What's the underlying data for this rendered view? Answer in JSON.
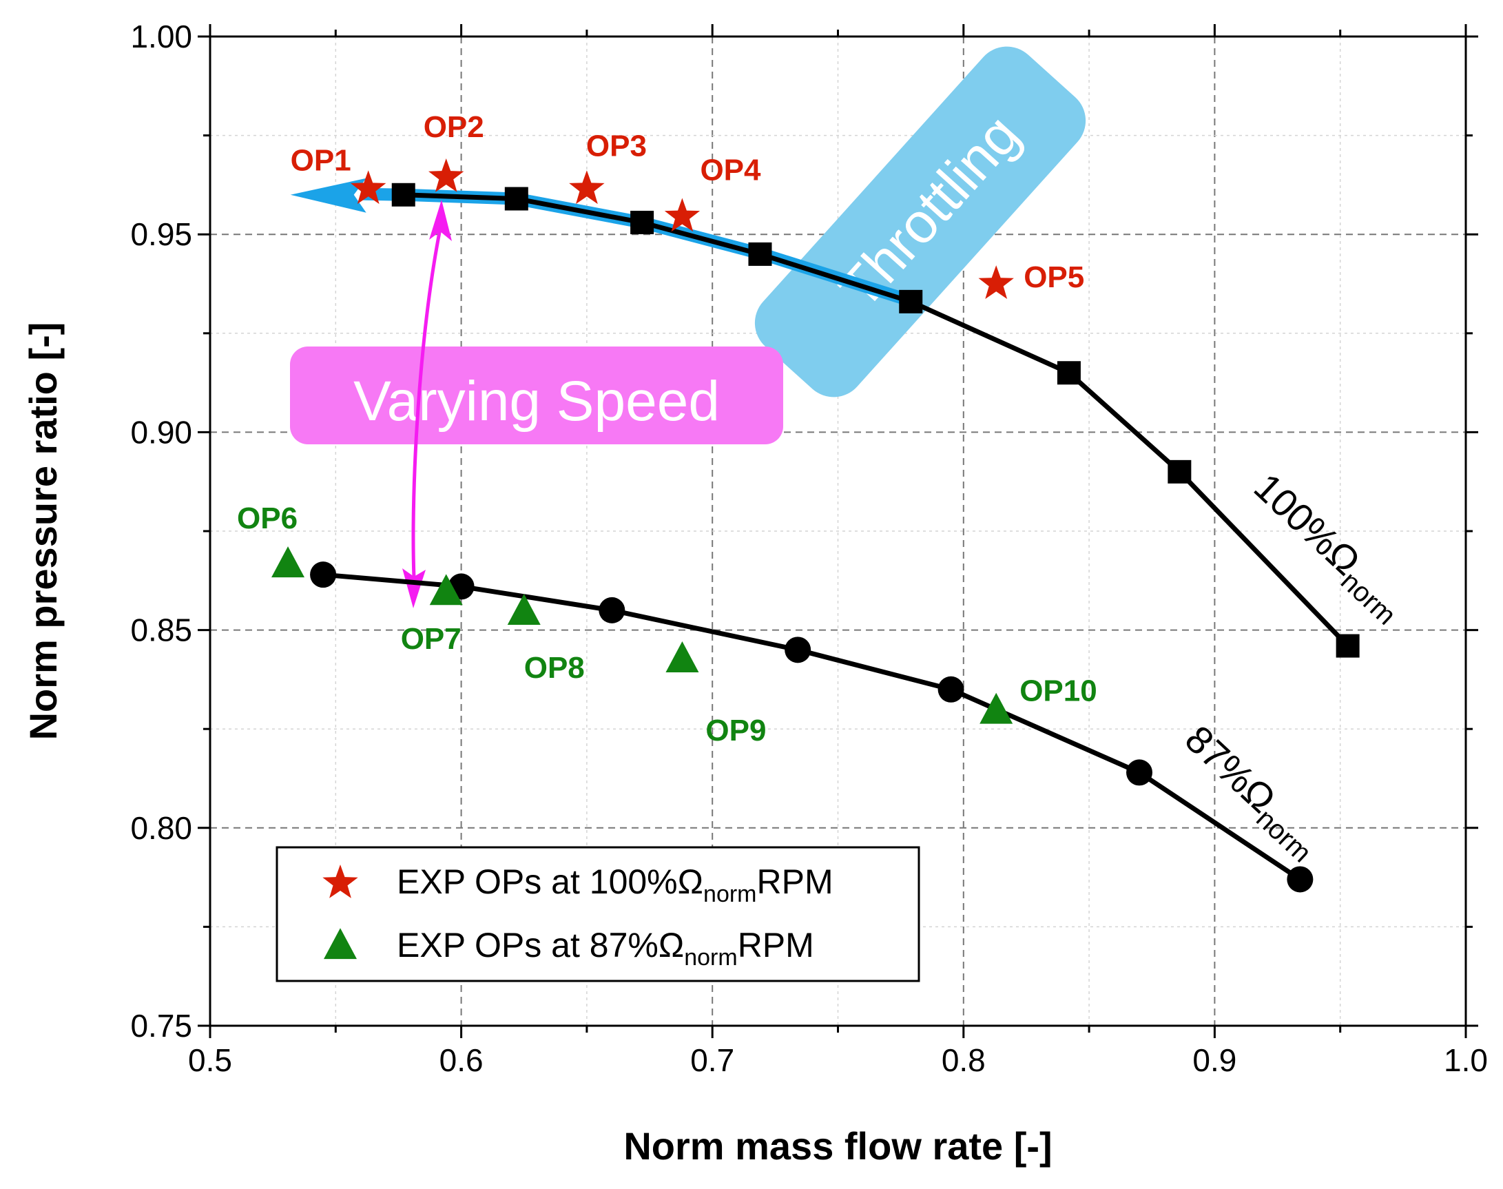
{
  "chart_data": {
    "type": "line",
    "xlabel": "Norm mass flow rate [-]",
    "ylabel": "Norm pressure ratio [-]",
    "xlim": [
      0.5,
      1.0
    ],
    "ylim": [
      0.75,
      1.0
    ],
    "x_ticks": [
      "0.5",
      "0.6",
      "0.7",
      "0.8",
      "0.9",
      "1.0"
    ],
    "y_ticks": [
      "0.75",
      "0.80",
      "0.85",
      "0.90",
      "0.95",
      "1.00"
    ],
    "grid": true,
    "series": [
      {
        "name": "100% speed line",
        "marker": "square",
        "color": "#000000",
        "x": [
          0.577,
          0.622,
          0.672,
          0.719,
          0.779,
          0.842,
          0.886,
          0.953
        ],
        "y": [
          0.96,
          0.959,
          0.953,
          0.945,
          0.933,
          0.915,
          0.89,
          0.846
        ]
      },
      {
        "name": "87% speed line",
        "marker": "circle",
        "color": "#000000",
        "x": [
          0.545,
          0.6,
          0.66,
          0.734,
          0.795,
          0.87,
          0.934
        ],
        "y": [
          0.864,
          0.861,
          0.855,
          0.845,
          0.835,
          0.814,
          0.787
        ]
      },
      {
        "name": "EXP OPs at 100%Ω norm RPM",
        "marker": "star",
        "color": "#d81e05",
        "labels": [
          "OP1",
          "OP2",
          "OP3",
          "OP4",
          "OP5"
        ],
        "x": [
          0.563,
          0.594,
          0.65,
          0.688,
          0.813
        ],
        "y": [
          0.962,
          0.965,
          0.962,
          0.955,
          0.938
        ]
      },
      {
        "name": "EXP OPs at 87%Ω norm RPM",
        "marker": "triangle",
        "color": "#118411",
        "labels": [
          "OP6",
          "OP7",
          "OP8",
          "OP9",
          "OP10"
        ],
        "x": [
          0.531,
          0.594,
          0.625,
          0.688,
          0.813
        ],
        "y": [
          0.867,
          0.86,
          0.855,
          0.843,
          0.83
        ]
      }
    ],
    "curve_labels": {
      "speed100": "100%Ω",
      "speed87": "87%Ω",
      "subscript": "norm"
    },
    "legend": {
      "items": [
        {
          "prefix": "EXP OPs at 100%Ω",
          "sub": "norm",
          "suffix": "RPM"
        },
        {
          "prefix": "EXP OPs at 87%Ω",
          "sub": "norm",
          "suffix": "RPM"
        }
      ],
      "placement": "bottom-left"
    },
    "annotations": {
      "throttling": "Throttling",
      "varying_speed": "Varying Speed"
    },
    "colors": {
      "red": "#d81e05",
      "green": "#118411",
      "throttling_box": "#7fcdee",
      "throttling_arrow": "#1ba3e8",
      "speed_box": "#f779f5",
      "speed_arrow": "#f51cf1"
    }
  }
}
